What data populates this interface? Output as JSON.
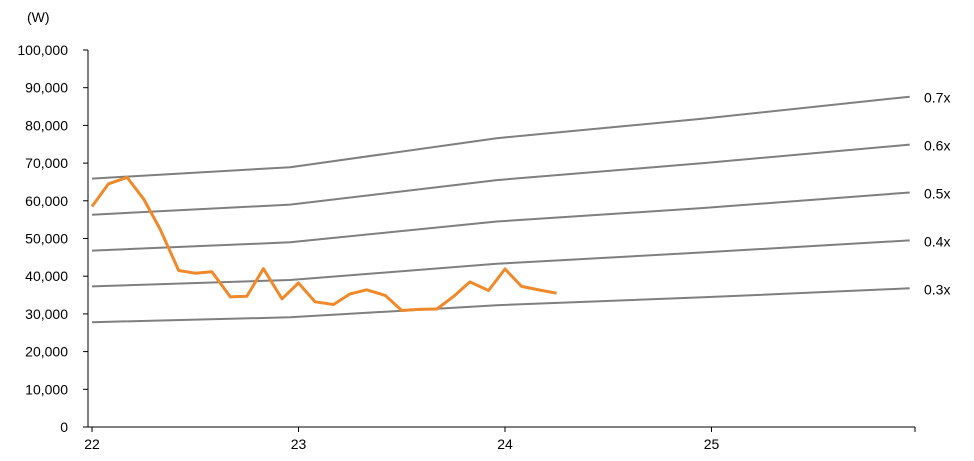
{
  "chart_data": {
    "type": "line",
    "unit_label": "(W)",
    "title": "",
    "xlabel": "",
    "ylabel": "",
    "ylim": [
      0,
      100000
    ],
    "xlim": [
      22,
      26
    ],
    "grid": false,
    "legend": "none",
    "y_ticks": [
      "100,000",
      "90,000",
      "80,000",
      "70,000",
      "60,000",
      "50,000",
      "40,000",
      "30,000",
      "20,000",
      "10,000",
      "0"
    ],
    "y_tick_values": [
      100000,
      90000,
      80000,
      70000,
      60000,
      50000,
      40000,
      30000,
      20000,
      10000,
      0
    ],
    "x_ticks": [
      "22",
      "23",
      "24",
      "25"
    ],
    "x_tick_values": [
      22,
      23,
      24,
      25
    ],
    "colors": {
      "price": "#f0892a",
      "bands": "#7f7f7f",
      "axis": "#000000"
    },
    "series": [
      {
        "kind": "price",
        "values": [
          [
            22.0,
            58500
          ],
          [
            22.08,
            64500
          ],
          [
            22.17,
            66200
          ],
          [
            22.25,
            60500
          ],
          [
            22.33,
            52500
          ],
          [
            22.42,
            41500
          ],
          [
            22.5,
            40800
          ],
          [
            22.58,
            41200
          ],
          [
            22.67,
            34500
          ],
          [
            22.75,
            34700
          ],
          [
            22.83,
            42000
          ],
          [
            22.92,
            34000
          ],
          [
            23.0,
            38200
          ],
          [
            23.08,
            33200
          ],
          [
            23.17,
            32500
          ],
          [
            23.25,
            35300
          ],
          [
            23.33,
            36400
          ],
          [
            23.42,
            34900
          ],
          [
            23.5,
            30900
          ],
          [
            23.58,
            31200
          ],
          [
            23.67,
            31300
          ],
          [
            23.75,
            34600
          ],
          [
            23.83,
            38500
          ],
          [
            23.92,
            36200
          ],
          [
            24.0,
            41900
          ],
          [
            24.08,
            37300
          ],
          [
            24.17,
            36300
          ],
          [
            24.25,
            35500
          ]
        ]
      },
      {
        "name": "0.7x",
        "values": [
          [
            22.0,
            65900
          ],
          [
            22.96,
            68900
          ],
          [
            23.96,
            76600
          ],
          [
            24.96,
            81800
          ],
          [
            25.96,
            87600
          ]
        ]
      },
      {
        "name": "0.6x",
        "values": [
          [
            22.0,
            56300
          ],
          [
            22.96,
            59000
          ],
          [
            23.96,
            65500
          ],
          [
            24.96,
            70000
          ],
          [
            25.96,
            74900
          ]
        ]
      },
      {
        "name": "0.5x",
        "values": [
          [
            22.0,
            46800
          ],
          [
            22.96,
            49000
          ],
          [
            23.96,
            54500
          ],
          [
            24.96,
            58100
          ],
          [
            25.96,
            62200
          ]
        ]
      },
      {
        "name": "0.4x",
        "values": [
          [
            22.0,
            37300
          ],
          [
            22.96,
            39000
          ],
          [
            23.96,
            43300
          ],
          [
            24.96,
            46300
          ],
          [
            25.96,
            49500
          ]
        ]
      },
      {
        "name": "0.3x",
        "values": [
          [
            22.0,
            27800
          ],
          [
            22.96,
            29100
          ],
          [
            23.96,
            32300
          ],
          [
            24.96,
            34400
          ],
          [
            25.96,
            36800
          ]
        ]
      }
    ]
  }
}
